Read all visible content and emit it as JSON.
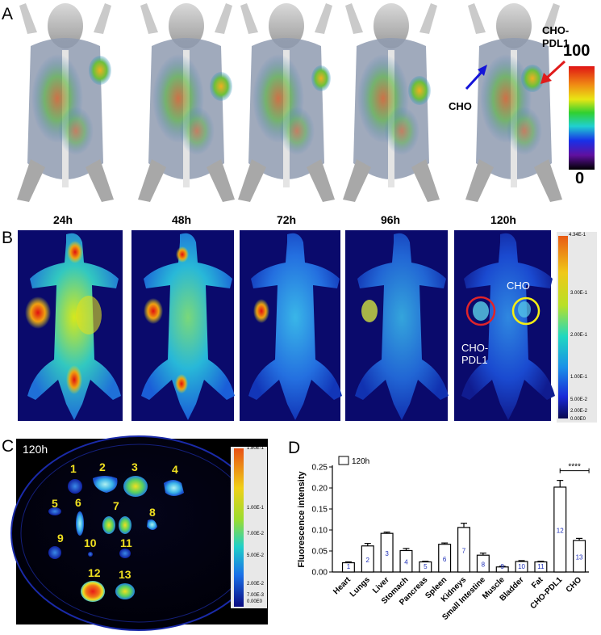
{
  "panels": {
    "a": "A",
    "b": "B",
    "c": "C",
    "d": "D"
  },
  "timepoints": [
    "24h",
    "48h",
    "72h",
    "96h",
    "120h"
  ],
  "pet": {
    "label_cho": "CHO",
    "label_chopdl1_line1": "CHO-",
    "label_chopdl1_line2": "PDL1",
    "scale_max": "100",
    "scale_min": "0",
    "arrow_cho_color": "#1414d8",
    "arrow_pdl1_color": "#e01b1b"
  },
  "fluor": {
    "label_cho": "CHO",
    "label_chopdl1_line1": "CHO-",
    "label_chopdl1_line2": "PDL1",
    "circle_pdl1_color": "#e0242a",
    "circle_cho_color": "#f5ee14",
    "scale_ticks": [
      "4.34E-1",
      "3.00E-1",
      "2.00E-1",
      "1.00E-1",
      "5.00E-2",
      "2.00E-2",
      "0.00E0"
    ]
  },
  "exvivo": {
    "time": "120h",
    "organ_numbers": [
      "1",
      "2",
      "3",
      "4",
      "5",
      "6",
      "7",
      "8",
      "9",
      "10",
      "11",
      "12",
      "13"
    ],
    "scale_ticks": [
      "1.80E-1",
      "1.00E-1",
      "7.00E-2",
      "5.00E-2",
      "2.00E-2",
      "7.00E-3",
      "0.00E0"
    ]
  },
  "chart_data": {
    "type": "bar",
    "legend": "120h",
    "ylabel": "Fluorescence intensity",
    "ylim": [
      0,
      0.25
    ],
    "yticks": [
      "0.00",
      "0.05",
      "0.10",
      "0.15",
      "0.20",
      "0.25"
    ],
    "categories": [
      "Heart",
      "Lungs",
      "Liver",
      "Stomach",
      "Pancreas",
      "Spleen",
      "Kidneys",
      "Small Intestine",
      "Muscle",
      "Bladder",
      "Fat",
      "CHO-PDL1",
      "CHO"
    ],
    "bar_numbers": [
      "1",
      "2",
      "3",
      "4",
      "5",
      "6",
      "7",
      "8",
      "9",
      "10",
      "11",
      "12",
      "13"
    ],
    "values": [
      0.022,
      0.062,
      0.092,
      0.051,
      0.024,
      0.066,
      0.106,
      0.04,
      0.012,
      0.025,
      0.024,
      0.202,
      0.075
    ],
    "errors": [
      0.002,
      0.006,
      0.003,
      0.005,
      0.0015,
      0.003,
      0.01,
      0.005,
      0.0015,
      0.002,
      0.0015,
      0.016,
      0.005
    ],
    "significance": "****",
    "bar_number_color": "#1e2fb8"
  }
}
